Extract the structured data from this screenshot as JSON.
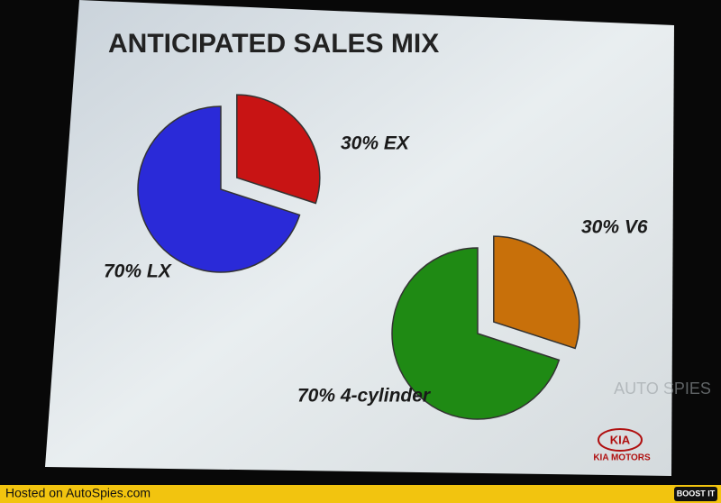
{
  "title": "ANTICIPATED SALES MIX",
  "chart_data": [
    {
      "type": "pie",
      "values": [
        30,
        70
      ],
      "value_labels": [
        "30% EX",
        "70% LX"
      ],
      "colors": [
        "#c81414",
        "#2a2ad8"
      ]
    },
    {
      "type": "pie",
      "values": [
        30,
        70
      ],
      "value_labels": [
        "30% V6",
        "70% 4-cylinder"
      ],
      "colors": [
        "#c8700a",
        "#1f8a14"
      ]
    }
  ],
  "logo": {
    "mark": "KIA",
    "name": "KIA MOTORS"
  },
  "watermark": "AUTO SPIES",
  "footer": {
    "text": "Hosted on AutoSpies.com",
    "button": "BOOST IT"
  }
}
